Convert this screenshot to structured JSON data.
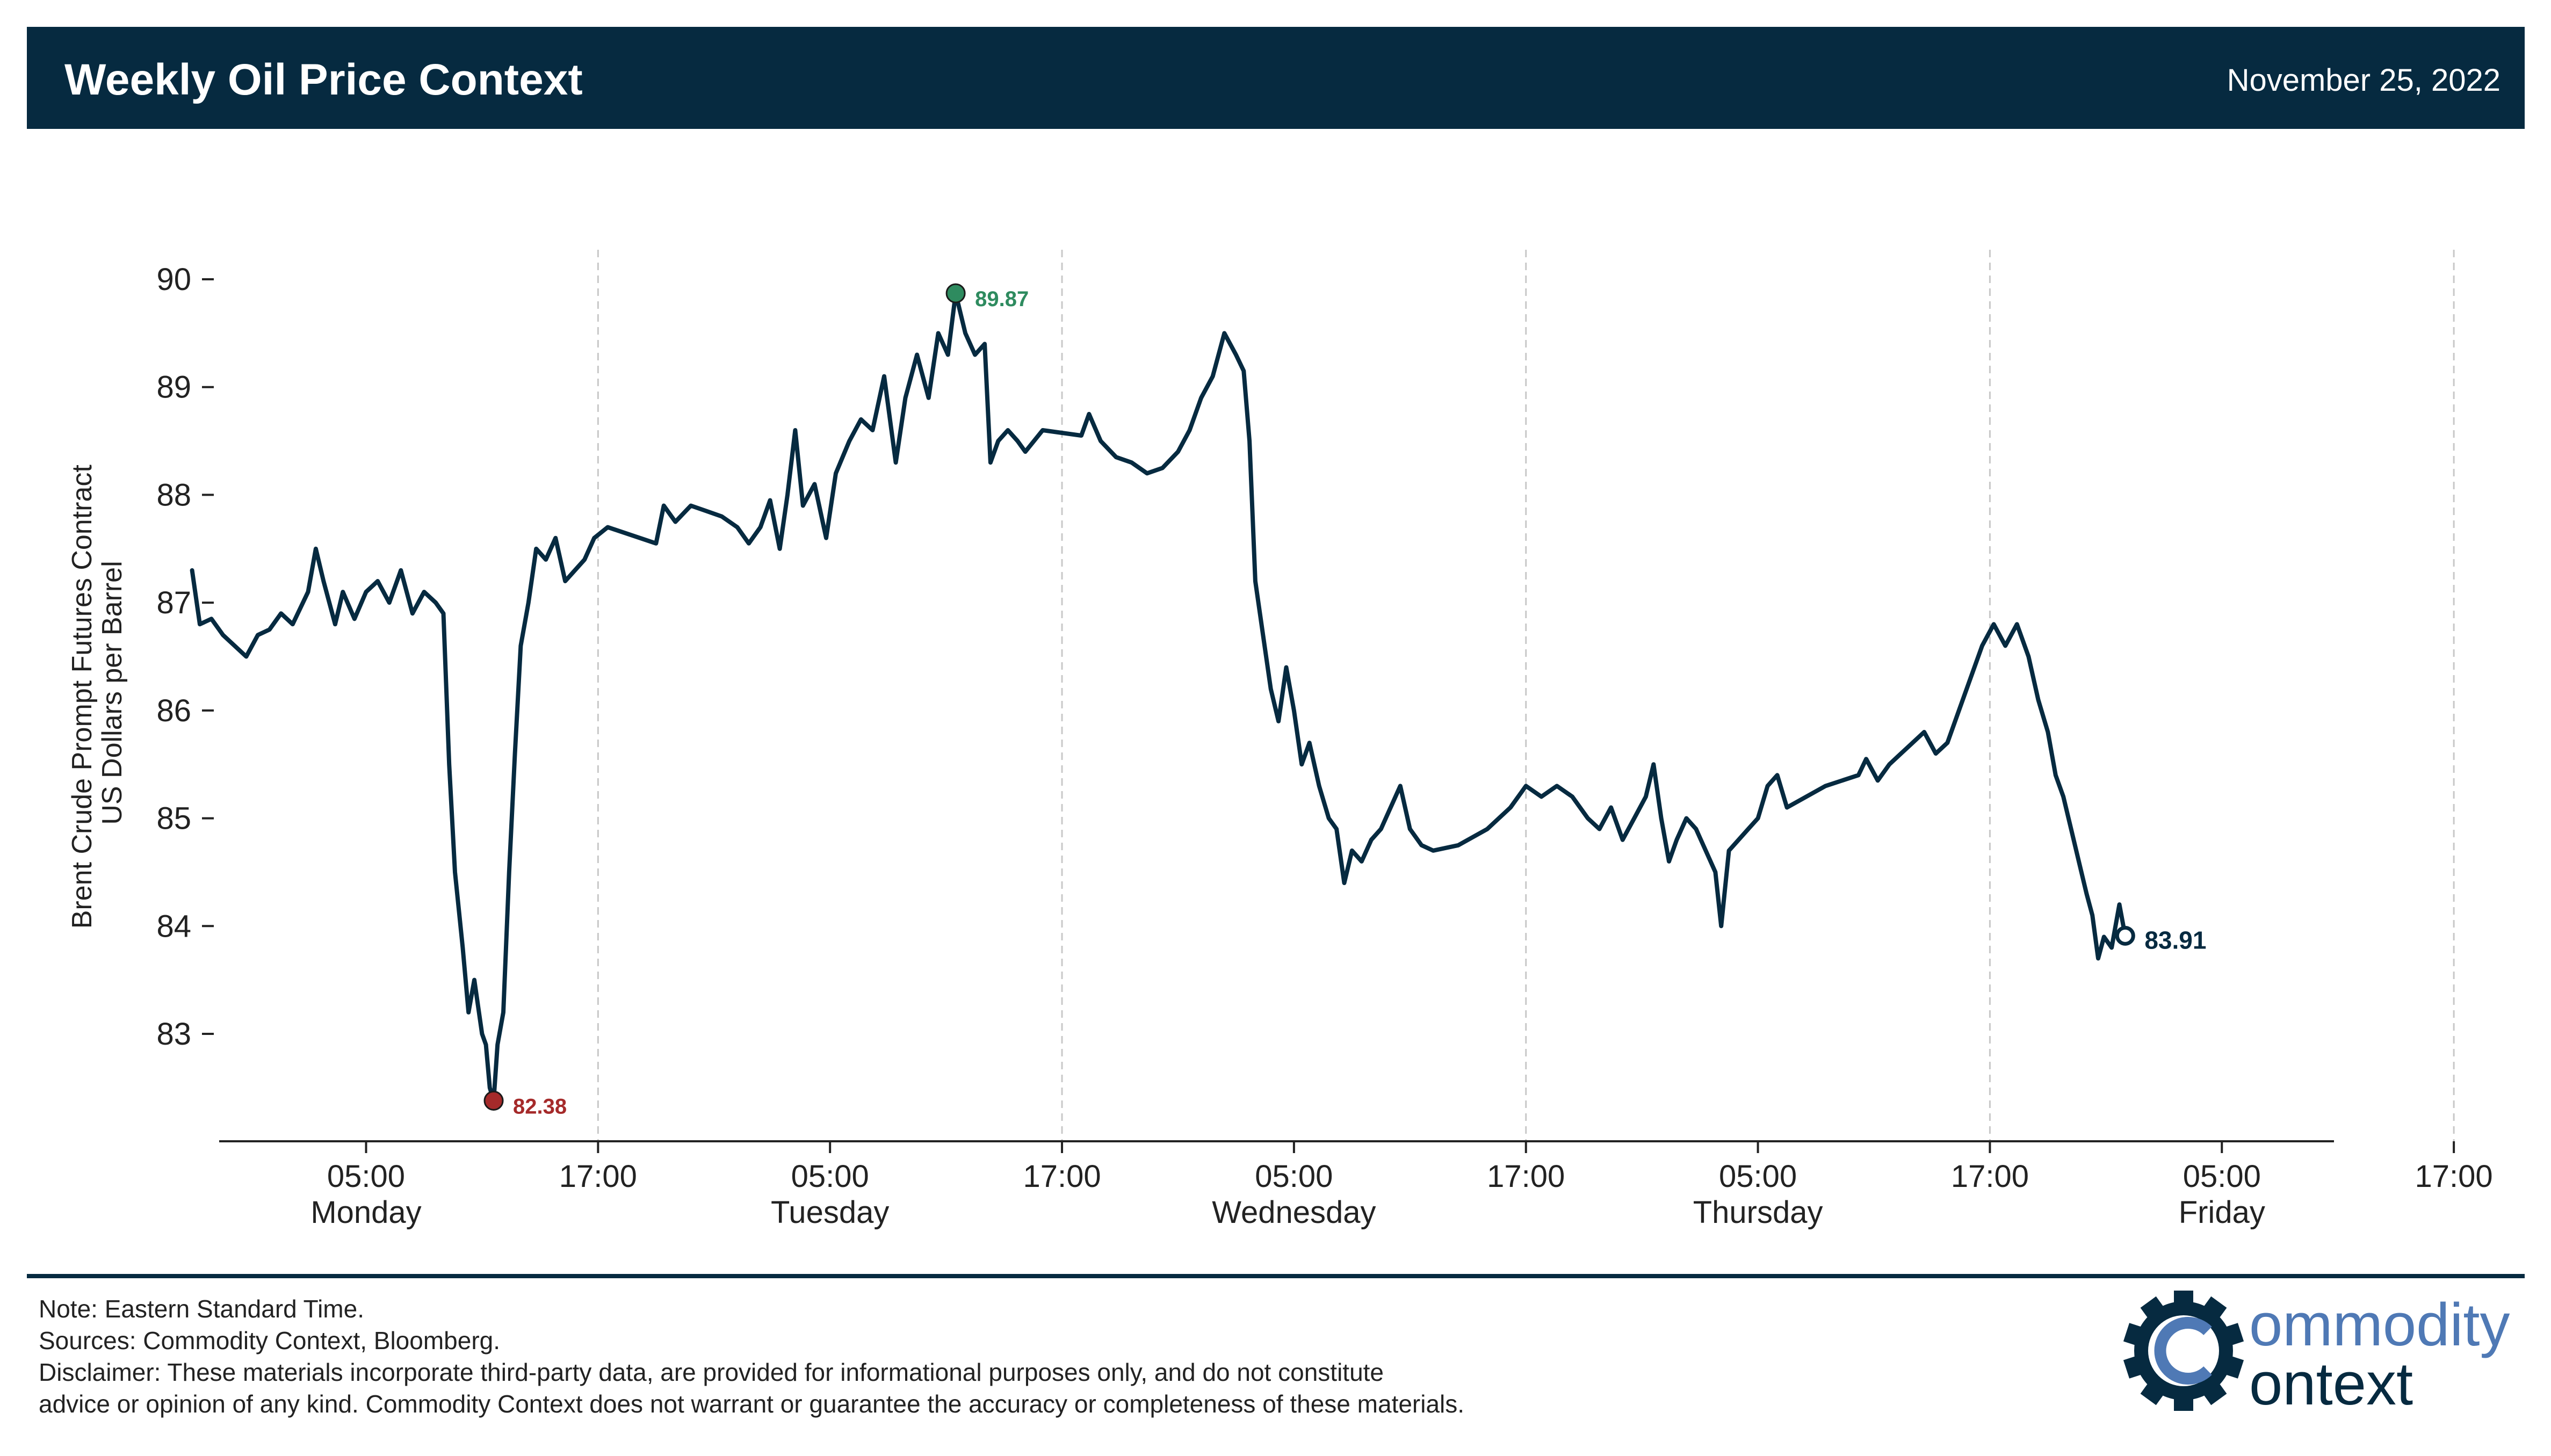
{
  "header": {
    "title": "Weekly Oil Price Context",
    "date": "November 25, 2022"
  },
  "chart_data": {
    "type": "line",
    "ylabel_line1": "Brent Crude Prompt Futures Contract",
    "ylabel_line2": "US Dollars per Barrel",
    "ylim": [
      82.0,
      90.2
    ],
    "yticks": [
      83,
      84,
      85,
      86,
      87,
      88,
      89,
      90
    ],
    "xlim": [
      -7.6,
      101.8
    ],
    "grid": "vertical dashed at 17:00 ticks",
    "xticks": [
      {
        "x": 0,
        "time": "05:00",
        "day": "Monday"
      },
      {
        "x": 12,
        "time": "17:00",
        "day": ""
      },
      {
        "x": 24,
        "time": "05:00",
        "day": "Tuesday"
      },
      {
        "x": 36,
        "time": "17:00",
        "day": ""
      },
      {
        "x": 48,
        "time": "05:00",
        "day": "Wednesday"
      },
      {
        "x": 60,
        "time": "17:00",
        "day": ""
      },
      {
        "x": 72,
        "time": "05:00",
        "day": "Thursday"
      },
      {
        "x": 84,
        "time": "17:00",
        "day": ""
      },
      {
        "x": 96,
        "time": "05:00",
        "day": "Friday"
      },
      {
        "x": 108,
        "time": "17:00",
        "day": ""
      }
    ],
    "x_unit": "hours since Monday 05:00 EST",
    "series": [
      {
        "name": "Brent Crude Prompt Futures",
        "color": "#062a40",
        "points": [
          [
            -9.0,
            87.3
          ],
          [
            -8.6,
            86.8
          ],
          [
            -8.0,
            86.85
          ],
          [
            -7.4,
            86.7
          ],
          [
            -6.8,
            86.6
          ],
          [
            -6.2,
            86.5
          ],
          [
            -5.6,
            86.7
          ],
          [
            -5.0,
            86.75
          ],
          [
            -4.4,
            86.9
          ],
          [
            -3.8,
            86.8
          ],
          [
            -3.0,
            87.1
          ],
          [
            -2.6,
            87.5
          ],
          [
            -2.2,
            87.2
          ],
          [
            -1.6,
            86.8
          ],
          [
            -1.2,
            87.1
          ],
          [
            -0.6,
            86.85
          ],
          [
            0.0,
            87.1
          ],
          [
            0.6,
            87.2
          ],
          [
            1.2,
            87.0
          ],
          [
            1.8,
            87.3
          ],
          [
            2.4,
            86.9
          ],
          [
            3.0,
            87.1
          ],
          [
            3.6,
            87.0
          ],
          [
            4.0,
            86.9
          ],
          [
            4.3,
            85.5
          ],
          [
            4.6,
            84.5
          ],
          [
            5.0,
            83.8
          ],
          [
            5.3,
            83.2
          ],
          [
            5.6,
            83.5
          ],
          [
            6.0,
            83.0
          ],
          [
            6.2,
            82.9
          ],
          [
            6.4,
            82.5
          ],
          [
            6.6,
            82.38
          ],
          [
            6.8,
            82.9
          ],
          [
            7.1,
            83.2
          ],
          [
            7.4,
            84.5
          ],
          [
            7.7,
            85.6
          ],
          [
            8.0,
            86.6
          ],
          [
            8.4,
            87.0
          ],
          [
            8.8,
            87.5
          ],
          [
            9.3,
            87.4
          ],
          [
            9.8,
            87.6
          ],
          [
            10.3,
            87.2
          ],
          [
            10.8,
            87.3
          ],
          [
            11.3,
            87.4
          ],
          [
            11.8,
            87.6
          ],
          [
            12.5,
            87.7
          ],
          [
            15.0,
            87.55
          ],
          [
            15.4,
            87.9
          ],
          [
            16.0,
            87.75
          ],
          [
            16.8,
            87.9
          ],
          [
            17.6,
            87.85
          ],
          [
            18.4,
            87.8
          ],
          [
            19.2,
            87.7
          ],
          [
            19.8,
            87.55
          ],
          [
            20.4,
            87.7
          ],
          [
            20.9,
            87.95
          ],
          [
            21.4,
            87.5
          ],
          [
            21.8,
            88.0
          ],
          [
            22.2,
            88.6
          ],
          [
            22.6,
            87.9
          ],
          [
            23.2,
            88.1
          ],
          [
            23.8,
            87.6
          ],
          [
            24.3,
            88.2
          ],
          [
            25.0,
            88.5
          ],
          [
            25.6,
            88.7
          ],
          [
            26.2,
            88.6
          ],
          [
            26.8,
            89.1
          ],
          [
            27.4,
            88.3
          ],
          [
            27.9,
            88.9
          ],
          [
            28.5,
            89.3
          ],
          [
            29.1,
            88.9
          ],
          [
            29.6,
            89.5
          ],
          [
            30.1,
            89.3
          ],
          [
            30.5,
            89.87
          ],
          [
            31.0,
            89.5
          ],
          [
            31.5,
            89.3
          ],
          [
            32.0,
            89.4
          ],
          [
            32.3,
            88.3
          ],
          [
            32.7,
            88.5
          ],
          [
            33.2,
            88.6
          ],
          [
            33.7,
            88.5
          ],
          [
            34.1,
            88.4
          ],
          [
            35.0,
            88.6
          ],
          [
            37.0,
            88.55
          ],
          [
            37.4,
            88.75
          ],
          [
            38.0,
            88.5
          ],
          [
            38.8,
            88.35
          ],
          [
            39.6,
            88.3
          ],
          [
            40.4,
            88.2
          ],
          [
            41.2,
            88.25
          ],
          [
            42.0,
            88.4
          ],
          [
            42.6,
            88.6
          ],
          [
            43.2,
            88.9
          ],
          [
            43.8,
            89.1
          ],
          [
            44.4,
            89.5
          ],
          [
            45.0,
            89.3
          ],
          [
            45.4,
            89.15
          ],
          [
            45.7,
            88.5
          ],
          [
            46.0,
            87.2
          ],
          [
            46.4,
            86.7
          ],
          [
            46.8,
            86.2
          ],
          [
            47.2,
            85.9
          ],
          [
            47.6,
            86.4
          ],
          [
            48.0,
            86.0
          ],
          [
            48.4,
            85.5
          ],
          [
            48.8,
            85.7
          ],
          [
            49.3,
            85.3
          ],
          [
            49.8,
            85.0
          ],
          [
            50.2,
            84.9
          ],
          [
            50.6,
            84.4
          ],
          [
            51.0,
            84.7
          ],
          [
            51.5,
            84.6
          ],
          [
            52.0,
            84.8
          ],
          [
            52.5,
            84.9
          ],
          [
            53.0,
            85.1
          ],
          [
            53.5,
            85.3
          ],
          [
            54.0,
            84.9
          ],
          [
            54.6,
            84.75
          ],
          [
            55.2,
            84.7
          ],
          [
            56.5,
            84.75
          ],
          [
            58.0,
            84.9
          ],
          [
            59.2,
            85.1
          ],
          [
            60.0,
            85.3
          ],
          [
            60.8,
            85.2
          ],
          [
            61.6,
            85.3
          ],
          [
            62.4,
            85.2
          ],
          [
            63.2,
            85.0
          ],
          [
            63.8,
            84.9
          ],
          [
            64.4,
            85.1
          ],
          [
            65.0,
            84.8
          ],
          [
            65.6,
            85.0
          ],
          [
            66.2,
            85.2
          ],
          [
            66.6,
            85.5
          ],
          [
            67.0,
            85.0
          ],
          [
            67.4,
            84.6
          ],
          [
            67.8,
            84.8
          ],
          [
            68.3,
            85.0
          ],
          [
            68.8,
            84.9
          ],
          [
            69.3,
            84.7
          ],
          [
            69.8,
            84.5
          ],
          [
            70.1,
            84.0
          ],
          [
            70.5,
            84.7
          ],
          [
            71.0,
            84.8
          ],
          [
            71.5,
            84.9
          ],
          [
            72.0,
            85.0
          ],
          [
            72.5,
            85.3
          ],
          [
            73.0,
            85.4
          ],
          [
            73.5,
            85.1
          ],
          [
            75.5,
            85.3
          ],
          [
            77.2,
            85.4
          ],
          [
            77.6,
            85.55
          ],
          [
            78.2,
            85.35
          ],
          [
            78.8,
            85.5
          ],
          [
            79.4,
            85.6
          ],
          [
            80.0,
            85.7
          ],
          [
            80.6,
            85.8
          ],
          [
            81.2,
            85.6
          ],
          [
            81.8,
            85.7
          ],
          [
            82.4,
            86.0
          ],
          [
            83.0,
            86.3
          ],
          [
            83.6,
            86.6
          ],
          [
            84.2,
            86.8
          ],
          [
            84.8,
            86.6
          ],
          [
            85.4,
            86.8
          ],
          [
            86.0,
            86.5
          ],
          [
            86.5,
            86.1
          ],
          [
            87.0,
            85.8
          ],
          [
            87.4,
            85.4
          ],
          [
            87.8,
            85.2
          ],
          [
            88.2,
            84.9
          ],
          [
            88.6,
            84.6
          ],
          [
            89.0,
            84.3
          ],
          [
            89.3,
            84.1
          ],
          [
            89.6,
            83.7
          ],
          [
            89.9,
            83.9
          ],
          [
            90.3,
            83.8
          ],
          [
            90.7,
            84.2
          ],
          [
            91.0,
            83.91
          ]
        ]
      }
    ],
    "annotations": [
      {
        "label": "89.87",
        "x": 30.5,
        "y": 89.87,
        "color": "#2e8b5f",
        "marker": "filled"
      },
      {
        "label": "82.38",
        "x": 6.6,
        "y": 82.38,
        "color": "#a52a2a",
        "marker": "filled"
      },
      {
        "label": "83.91",
        "x": 91.0,
        "y": 83.91,
        "color": "#062a40",
        "marker": "hollow"
      }
    ]
  },
  "footer": {
    "note": "Note: Eastern Standard Time.",
    "sources": "Sources: Commodity Context, Bloomberg.",
    "disclaimer_line1": "Disclaimer: These materials incorporate third-party data, are provided for informational purposes only, and do not constitute",
    "disclaimer_line2": "advice or opinion of any kind. Commodity Context does not warrant or guarantee the accuracy or completeness of these materials."
  },
  "logo": {
    "line1": "ommodity",
    "line2": "ontext",
    "color_top": "#4f79b5",
    "color_bottom": "#062a40"
  }
}
